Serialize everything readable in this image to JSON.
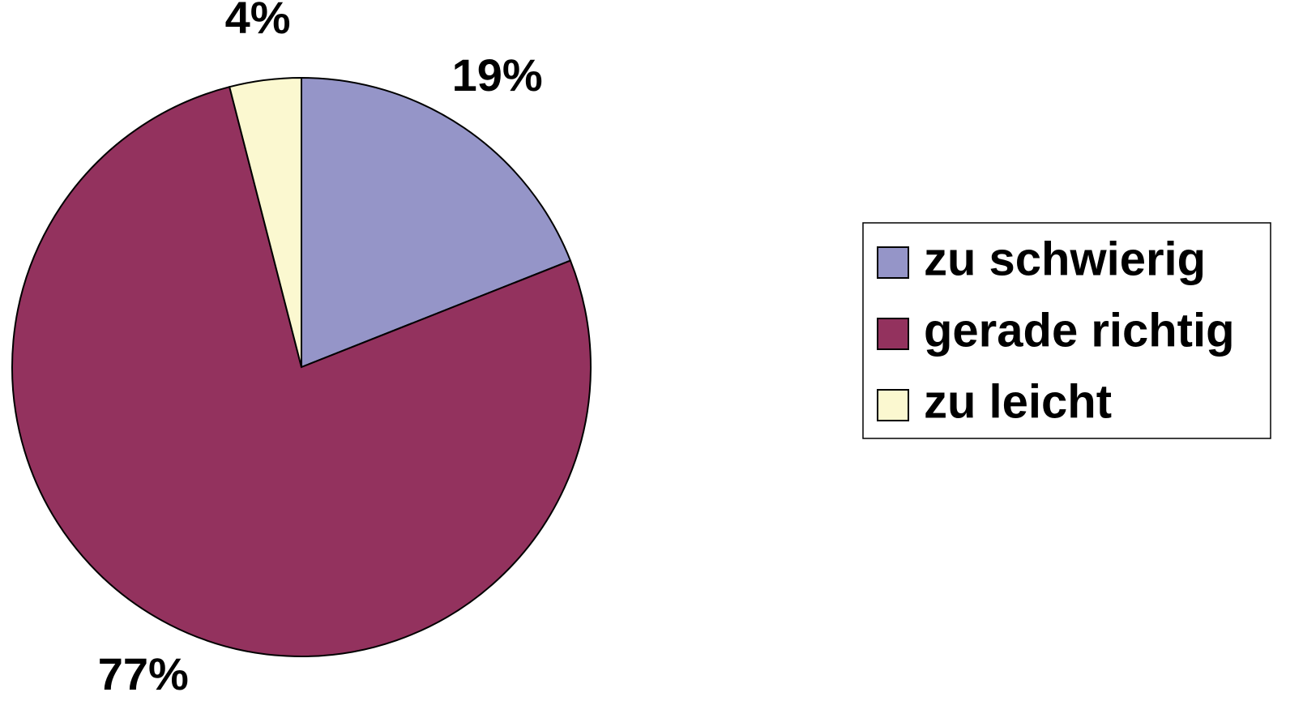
{
  "chart_data": {
    "type": "pie",
    "categories": [
      "zu schwierig",
      "gerade richtig",
      "zu leicht"
    ],
    "values": [
      19,
      77,
      4
    ],
    "value_labels": [
      "19%",
      "77%",
      "4%"
    ],
    "colors": [
      "#9595c8",
      "#93325e",
      "#fbf8d0"
    ],
    "legend": "right"
  }
}
